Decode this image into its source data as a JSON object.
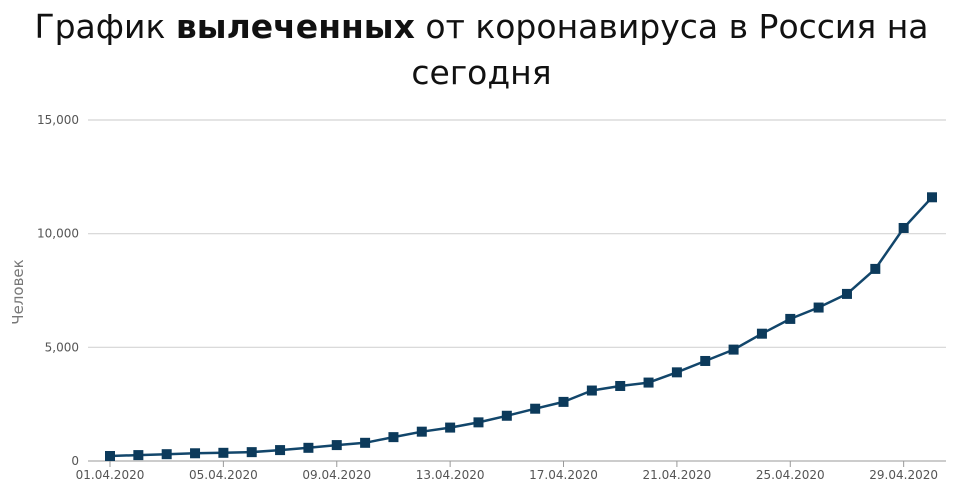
{
  "title": {
    "prefix": "График ",
    "bold": "вылеченных",
    "suffix": " от коронавируса в Россия на сегодня"
  },
  "colors": {
    "line": "#12466b",
    "marker": "#0c3a5b",
    "grid": "#d4d4d4",
    "axis": "#999999"
  },
  "chart_data": {
    "type": "line",
    "title": "График вылеченных от коронавируса в Россия на сегодня",
    "xlabel": "",
    "ylabel": "Человек",
    "ylim": [
      0,
      15000
    ],
    "yticks": [
      "15,000",
      "10,000",
      "5,000",
      "0"
    ],
    "ytick_values": [
      15000,
      10000,
      5000,
      0
    ],
    "grid": true,
    "x": [
      "01.04.2020",
      "02.04.2020",
      "03.04.2020",
      "04.04.2020",
      "05.04.2020",
      "06.04.2020",
      "07.04.2020",
      "08.04.2020",
      "09.04.2020",
      "10.04.2020",
      "11.04.2020",
      "12.04.2020",
      "13.04.2020",
      "14.04.2020",
      "15.04.2020",
      "16.04.2020",
      "17.04.2020",
      "18.04.2020",
      "19.04.2020",
      "20.04.2020",
      "21.04.2020",
      "22.04.2020",
      "23.04.2020",
      "24.04.2020",
      "25.04.2020",
      "26.04.2020",
      "27.04.2020",
      "28.04.2020",
      "29.04.2020",
      "30.04.2020"
    ],
    "xtick_labels": [
      "01.04.2020",
      "05.04.2020",
      "09.04.2020",
      "13.04.2020",
      "17.04.2020",
      "21.04.2020",
      "25.04.2020",
      "29.04.2020"
    ],
    "series": [
      {
        "values": [
          220,
          260,
          300,
          340,
          360,
          390,
          480,
          580,
          700,
          800,
          1050,
          1290,
          1470,
          1700,
          1990,
          2300,
          2600,
          3100,
          3300,
          3450,
          3900,
          4400,
          4900,
          5600,
          6250,
          6750,
          7350,
          8450,
          10250,
          11600
        ]
      }
    ]
  }
}
